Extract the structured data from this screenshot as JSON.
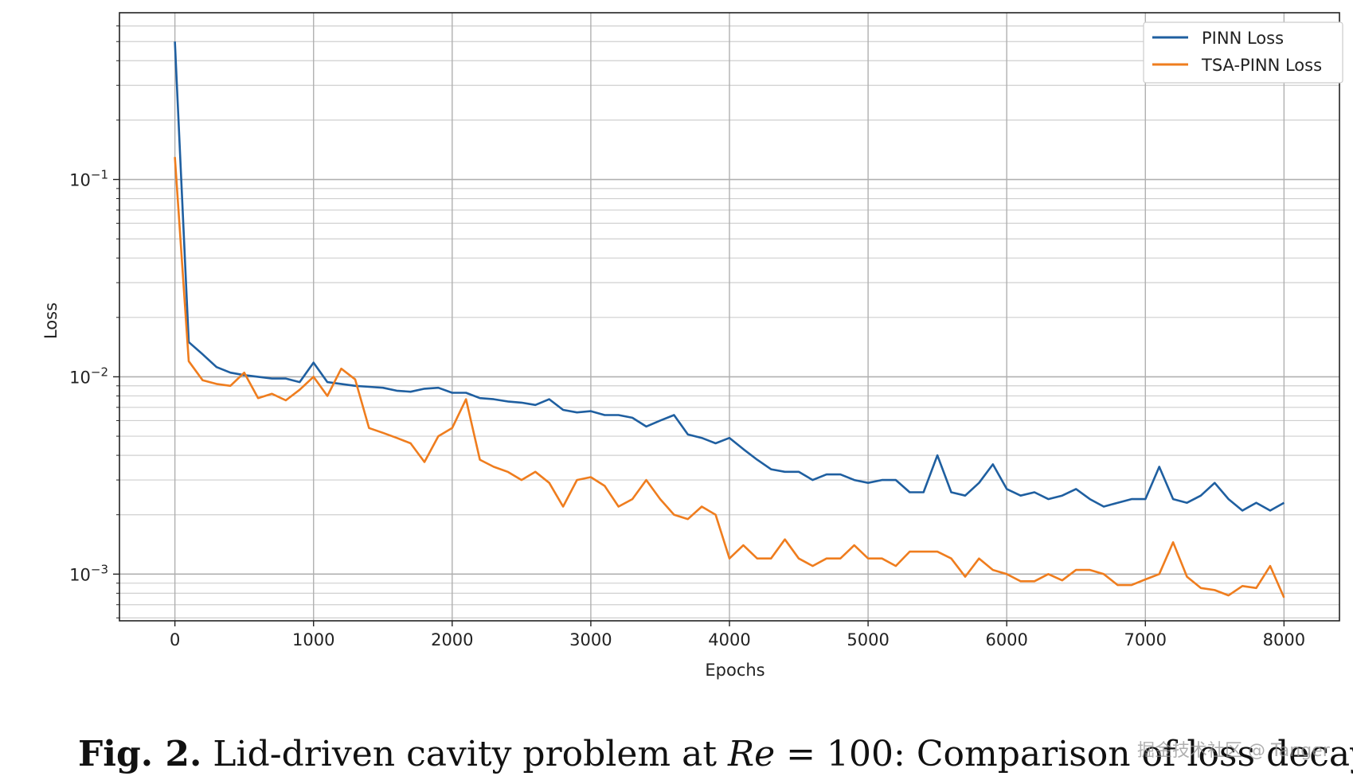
{
  "chart_data": {
    "type": "line",
    "xlabel": "Epochs",
    "ylabel": "Loss",
    "yscale": "log",
    "xlim": [
      -400,
      8400
    ],
    "ylim": [
      0.00058,
      0.7
    ],
    "grid": true,
    "legend_position": "top-right",
    "x_ticks": [
      {
        "value": 0,
        "label": "0"
      },
      {
        "value": 1000,
        "label": "1000"
      },
      {
        "value": 2000,
        "label": "2000"
      },
      {
        "value": 3000,
        "label": "3000"
      },
      {
        "value": 4000,
        "label": "4000"
      },
      {
        "value": 5000,
        "label": "5000"
      },
      {
        "value": 6000,
        "label": "6000"
      },
      {
        "value": 7000,
        "label": "7000"
      },
      {
        "value": 8000,
        "label": "8000"
      }
    ],
    "y_ticks": [
      {
        "value": 0.1,
        "base": "10",
        "exp": "−1"
      },
      {
        "value": 0.01,
        "base": "10",
        "exp": "−2"
      },
      {
        "value": 0.001,
        "base": "10",
        "exp": "−3"
      }
    ],
    "x": [
      0,
      100,
      200,
      300,
      400,
      500,
      600,
      700,
      800,
      900,
      1000,
      1100,
      1200,
      1300,
      1400,
      1500,
      1600,
      1700,
      1800,
      1900,
      2000,
      2100,
      2200,
      2300,
      2400,
      2500,
      2600,
      2700,
      2800,
      2900,
      3000,
      3100,
      3200,
      3300,
      3400,
      3500,
      3600,
      3700,
      3800,
      3900,
      4000,
      4100,
      4200,
      4300,
      4400,
      4500,
      4600,
      4700,
      4800,
      4900,
      5000,
      5100,
      5200,
      5300,
      5400,
      5500,
      5600,
      5700,
      5800,
      5900,
      6000,
      6100,
      6200,
      6300,
      6400,
      6500,
      6600,
      6700,
      6800,
      6900,
      7000,
      7100,
      7200,
      7300,
      7400,
      7500,
      7600,
      7700,
      7800,
      7900,
      8000
    ],
    "series": [
      {
        "name": "PINN Loss",
        "color": "#1f5fa0",
        "values": [
          0.5,
          0.015,
          0.013,
          0.0112,
          0.0105,
          0.0102,
          0.01,
          0.0098,
          0.0098,
          0.0094,
          0.0118,
          0.0094,
          0.0092,
          0.009,
          0.0089,
          0.0088,
          0.0085,
          0.0084,
          0.0087,
          0.0088,
          0.0083,
          0.0083,
          0.0078,
          0.0077,
          0.0075,
          0.0074,
          0.0072,
          0.0077,
          0.0068,
          0.0066,
          0.0067,
          0.0064,
          0.0064,
          0.0062,
          0.0056,
          0.006,
          0.0064,
          0.0051,
          0.0049,
          0.0046,
          0.0049,
          0.0043,
          0.0038,
          0.0034,
          0.0033,
          0.0033,
          0.003,
          0.0032,
          0.0032,
          0.003,
          0.0029,
          0.003,
          0.003,
          0.0026,
          0.0026,
          0.004,
          0.0026,
          0.0025,
          0.0029,
          0.0036,
          0.0027,
          0.0025,
          0.0026,
          0.0024,
          0.0025,
          0.0027,
          0.0024,
          0.0022,
          0.0023,
          0.0024,
          0.0024,
          0.0035,
          0.0024,
          0.0023,
          0.0025,
          0.0029,
          0.0024,
          0.0021,
          0.0023,
          0.0021,
          0.0023
        ]
      },
      {
        "name": "TSA-PINN Loss",
        "color": "#ef7d1e",
        "values": [
          0.13,
          0.012,
          0.0096,
          0.0092,
          0.009,
          0.0105,
          0.0078,
          0.0082,
          0.0076,
          0.0086,
          0.01,
          0.008,
          0.011,
          0.0097,
          0.0055,
          0.0052,
          0.0049,
          0.0046,
          0.0037,
          0.005,
          0.0055,
          0.0077,
          0.0038,
          0.0035,
          0.0033,
          0.003,
          0.0033,
          0.0029,
          0.0022,
          0.003,
          0.0031,
          0.0028,
          0.0022,
          0.0024,
          0.003,
          0.0024,
          0.002,
          0.0019,
          0.0022,
          0.002,
          0.0012,
          0.0014,
          0.0012,
          0.0012,
          0.0015,
          0.0012,
          0.0011,
          0.0012,
          0.0012,
          0.0014,
          0.0012,
          0.0012,
          0.0011,
          0.0013,
          0.0013,
          0.0013,
          0.0012,
          0.00097,
          0.0012,
          0.00105,
          0.001,
          0.00092,
          0.00092,
          0.001,
          0.00093,
          0.00105,
          0.00105,
          0.001,
          0.00088,
          0.00088,
          0.00094,
          0.001,
          0.00145,
          0.00097,
          0.00085,
          0.00083,
          0.00078,
          0.00087,
          0.00085,
          0.0011,
          0.00076
        ]
      }
    ]
  },
  "caption": {
    "fig_label": "Fig. 2.",
    "text_before": " Lid-driven cavity problem at ",
    "math_var": "Re",
    "math_rest": " = 100",
    "text_after": ": Comparison of loss decays."
  },
  "watermark": "掘金技术社区 @ Tanger"
}
